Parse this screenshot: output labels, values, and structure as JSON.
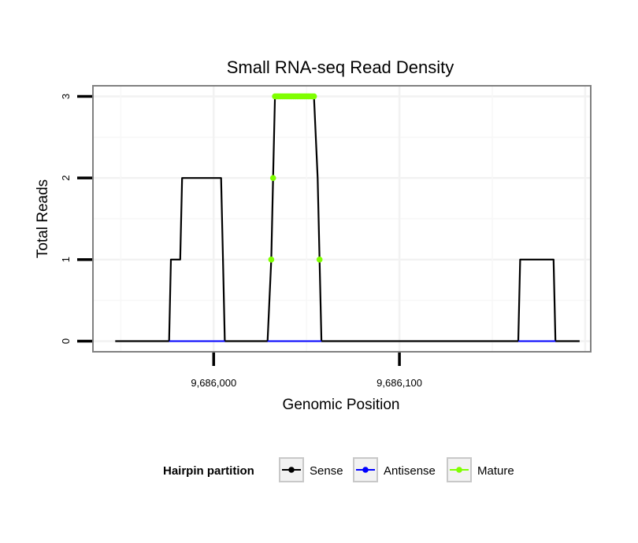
{
  "chart_data": {
    "type": "line",
    "title": "Small RNA-seq Read Density",
    "xlabel": "Genomic Position",
    "ylabel": "Total Reads",
    "xlim": [
      9685935,
      9686203
    ],
    "ylim": [
      -0.13,
      3.13
    ],
    "x_ticks": [
      {
        "value": 9686000,
        "label": "9,686,000"
      },
      {
        "value": 9686100,
        "label": "9,686,100"
      }
    ],
    "y_ticks": [
      {
        "value": 0,
        "label": "0"
      },
      {
        "value": 1,
        "label": "1"
      },
      {
        "value": 2,
        "label": "2"
      },
      {
        "value": 3,
        "label": "3"
      }
    ],
    "grid": true,
    "legend": {
      "title": "Hairpin partition",
      "position": "bottom",
      "entries": [
        {
          "name": "Sense",
          "color": "#000000"
        },
        {
          "name": "Antisense",
          "color": "#0000ff"
        },
        {
          "name": "Mature",
          "color": "#7fff00"
        }
      ]
    },
    "series": [
      {
        "name": "Sense",
        "color": "#000000",
        "points": [
          [
            9685947,
            0
          ],
          [
            9685976,
            0
          ],
          [
            9685977,
            1
          ],
          [
            9685982,
            1
          ],
          [
            9685983,
            2
          ],
          [
            9686004,
            2
          ],
          [
            9686005,
            1
          ],
          [
            9686006,
            0
          ],
          [
            9686029,
            0
          ],
          [
            9686031,
            1
          ],
          [
            9686032,
            2
          ],
          [
            9686033,
            3
          ],
          [
            9686054,
            3
          ],
          [
            9686056,
            2
          ],
          [
            9686057,
            1
          ],
          [
            9686058,
            0
          ],
          [
            9686164,
            0
          ],
          [
            9686165,
            1
          ],
          [
            9686183,
            1
          ],
          [
            9686184,
            0
          ],
          [
            9686197,
            0
          ]
        ]
      },
      {
        "name": "Antisense",
        "color": "#0000ff",
        "points": [
          [
            9685976,
            0
          ],
          [
            9686006,
            0
          ],
          [
            9686029,
            0
          ],
          [
            9686058,
            0
          ],
          [
            9686164,
            0
          ],
          [
            9686184,
            0
          ]
        ]
      },
      {
        "name": "Mature",
        "color": "#7fff00",
        "points": [
          [
            9686031,
            1
          ],
          [
            9686032,
            2
          ],
          [
            9686033,
            3
          ],
          [
            9686034,
            3
          ],
          [
            9686035,
            3
          ],
          [
            9686036,
            3
          ],
          [
            9686037,
            3
          ],
          [
            9686038,
            3
          ],
          [
            9686039,
            3
          ],
          [
            9686040,
            3
          ],
          [
            9686041,
            3
          ],
          [
            9686042,
            3
          ],
          [
            9686043,
            3
          ],
          [
            9686044,
            3
          ],
          [
            9686045,
            3
          ],
          [
            9686046,
            3
          ],
          [
            9686047,
            3
          ],
          [
            9686048,
            3
          ],
          [
            9686049,
            3
          ],
          [
            9686050,
            3
          ],
          [
            9686051,
            3
          ],
          [
            9686052,
            3
          ],
          [
            9686053,
            3
          ],
          [
            9686054,
            3
          ],
          [
            9686057,
            1
          ]
        ]
      }
    ]
  }
}
